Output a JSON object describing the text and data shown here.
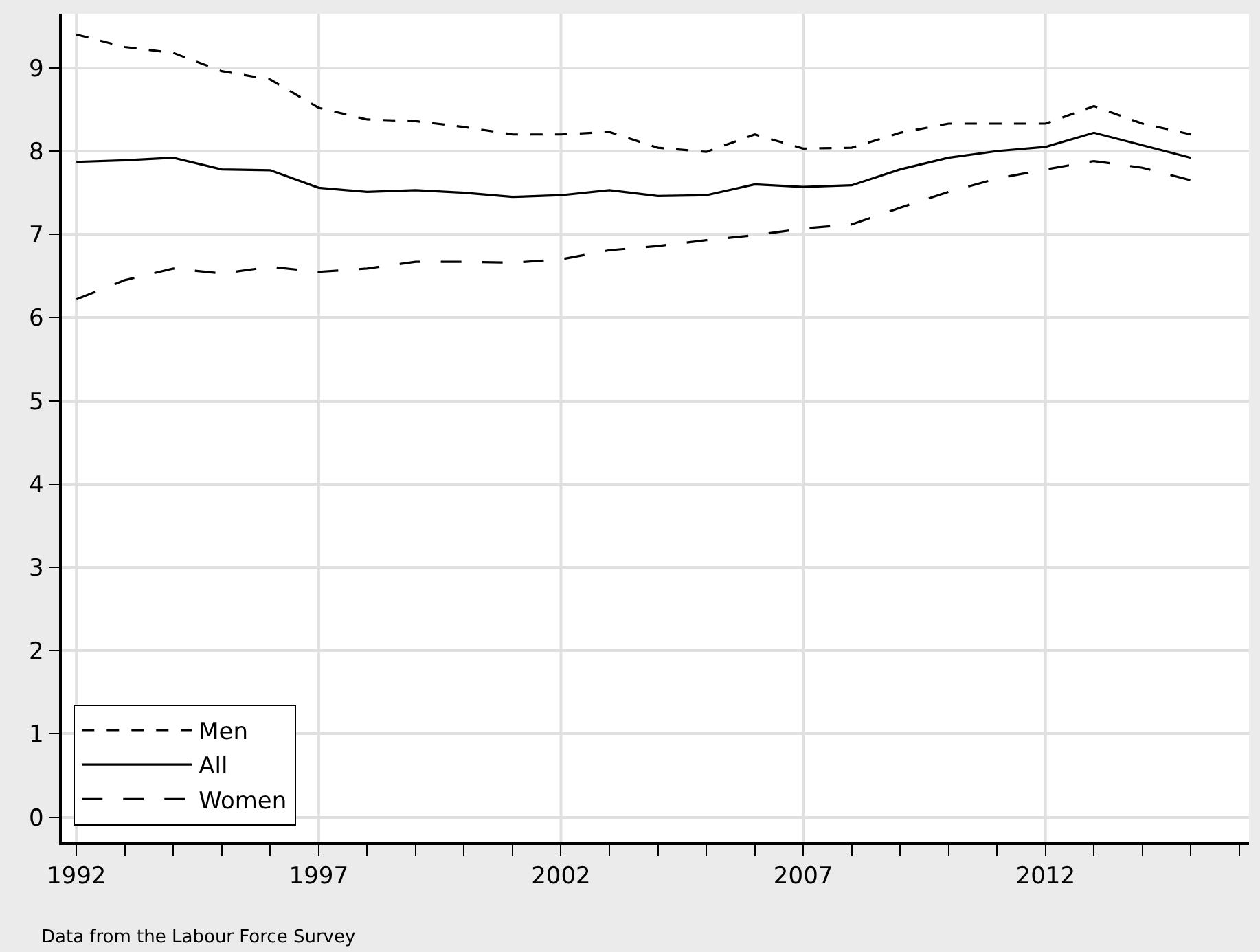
{
  "chart_data": {
    "type": "line",
    "x": [
      1992,
      1993,
      1994,
      1995,
      1996,
      1997,
      1998,
      1999,
      2000,
      2001,
      2002,
      2003,
      2004,
      2005,
      2006,
      2007,
      2008,
      2009,
      2010,
      2011,
      2012,
      2013,
      2014,
      2015
    ],
    "series": [
      {
        "name": "Men",
        "color": "#000000",
        "line_style": "dashed",
        "values": [
          9.4,
          9.25,
          9.18,
          8.96,
          8.86,
          8.52,
          8.38,
          8.36,
          8.29,
          8.2,
          8.2,
          8.23,
          8.04,
          7.99,
          8.2,
          8.03,
          8.04,
          8.22,
          8.33,
          8.33,
          8.33,
          8.54,
          8.33,
          8.2
        ]
      },
      {
        "name": "All",
        "color": "#000000",
        "line_style": "solid",
        "values": [
          7.87,
          7.89,
          7.92,
          7.78,
          7.77,
          7.56,
          7.51,
          7.53,
          7.5,
          7.45,
          7.47,
          7.53,
          7.46,
          7.47,
          7.6,
          7.57,
          7.59,
          7.78,
          7.92,
          8.0,
          8.05,
          8.22,
          8.07,
          7.92
        ]
      },
      {
        "name": "Women",
        "color": "#000000",
        "line_style": "longdash",
        "values": [
          6.22,
          6.45,
          6.59,
          6.53,
          6.61,
          6.55,
          6.59,
          6.67,
          6.67,
          6.66,
          6.7,
          6.81,
          6.86,
          6.93,
          6.99,
          7.07,
          7.12,
          7.32,
          7.51,
          7.67,
          7.78,
          7.88,
          7.8,
          7.65
        ]
      }
    ],
    "xlim": [
      1991.7,
      2016.2
    ],
    "xticks": [
      1992,
      {
        "value": 1993,
        "label": null
      },
      {
        "value": 1994,
        "label": null
      },
      {
        "value": 1995,
        "label": null
      },
      {
        "value": 1996,
        "label": null
      },
      1997,
      {
        "value": 1998,
        "label": null
      },
      {
        "value": 1999,
        "label": null
      },
      {
        "value": 2000,
        "label": null
      },
      {
        "value": 2001,
        "label": null
      },
      2002,
      {
        "value": 2003,
        "label": null
      },
      {
        "value": 2004,
        "label": null
      },
      {
        "value": 2005,
        "label": null
      },
      {
        "value": 2006,
        "label": null
      },
      2007,
      {
        "value": 2008,
        "label": null
      },
      {
        "value": 2009,
        "label": null
      },
      {
        "value": 2010,
        "label": null
      },
      {
        "value": 2011,
        "label": null
      },
      2012,
      {
        "value": 2013,
        "label": null
      },
      {
        "value": 2014,
        "label": null
      },
      {
        "value": 2015,
        "label": null
      },
      {
        "value": 2016,
        "label": null
      }
    ],
    "ylim": [
      -0.3,
      9.65
    ],
    "yticks": [
      0,
      1,
      2,
      3,
      4,
      5,
      6,
      7,
      8,
      9
    ],
    "grid": true,
    "legend": "bottom left",
    "annotations": [
      "Data from the Labour Force Survey"
    ]
  }
}
